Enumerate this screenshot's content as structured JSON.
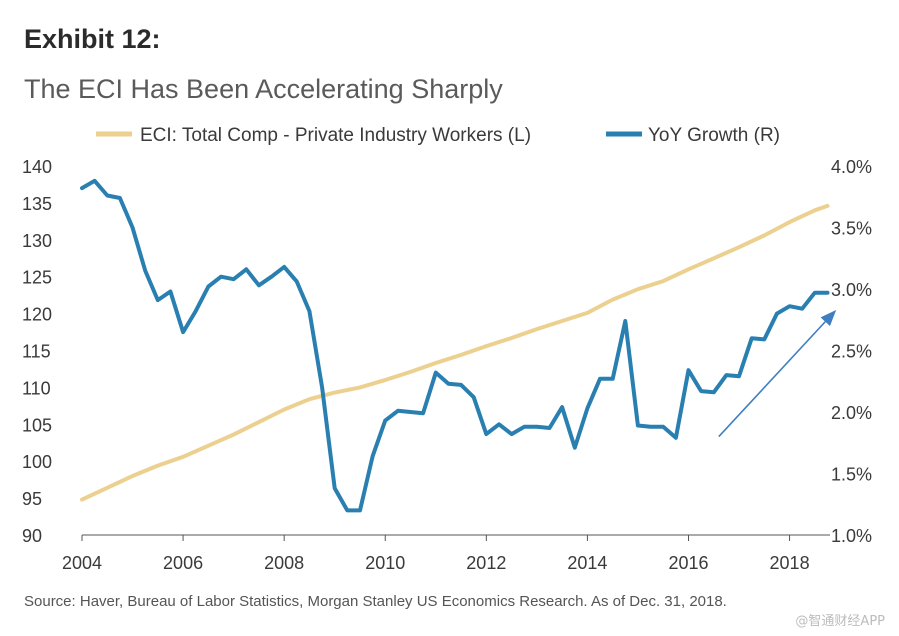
{
  "header": {
    "exhibit": "Exhibit 12:",
    "title": "The ECI Has Been Accelerating Sharply"
  },
  "footer": {
    "source": "Source: Haver, Bureau of Labor Statistics, Morgan Stanley US Economics Research. As of Dec. 31, 2018.",
    "watermark": "@智通财经APP"
  },
  "colors": {
    "eci": "#ecd08f",
    "yoy": "#2a7fb1",
    "arrow": "#3f7fc1"
  },
  "chart_data": {
    "type": "line",
    "title": "The ECI Has Been Accelerating Sharply",
    "legend_position": "top",
    "grid": false,
    "x_range": [
      2004,
      2018.8
    ],
    "x_ticks": [
      2004,
      2006,
      2008,
      2010,
      2012,
      2014,
      2016,
      2018
    ],
    "x_tick_labels": [
      "2004",
      "2006",
      "2008",
      "2010",
      "2012",
      "2014",
      "2016",
      "2018"
    ],
    "y_left": {
      "range": [
        90,
        140
      ],
      "ticks": [
        90,
        95,
        100,
        105,
        110,
        115,
        120,
        125,
        130,
        135,
        140
      ],
      "tick_labels": [
        "90",
        "95",
        "100",
        "105",
        "110",
        "115",
        "120",
        "125",
        "130",
        "135",
        "140"
      ]
    },
    "y_right": {
      "range": [
        1.0,
        4.0
      ],
      "ticks": [
        1.0,
        1.5,
        2.0,
        2.5,
        3.0,
        3.5,
        4.0
      ],
      "tick_labels": [
        "1.0%",
        "1.5%",
        "2.0%",
        "2.5%",
        "3.0%",
        "3.5%",
        "4.0%"
      ]
    },
    "series": [
      {
        "name": "ECI: Total Comp - Private Industry Workers (L)",
        "axis": "left",
        "x": [
          2004.0,
          2004.5,
          2005.0,
          2005.5,
          2006.0,
          2006.5,
          2007.0,
          2007.5,
          2008.0,
          2008.5,
          2009.0,
          2009.5,
          2010.0,
          2010.5,
          2011.0,
          2011.5,
          2012.0,
          2012.5,
          2013.0,
          2013.5,
          2014.0,
          2014.5,
          2015.0,
          2015.5,
          2016.0,
          2016.5,
          2017.0,
          2017.5,
          2018.0,
          2018.5,
          2018.75
        ],
        "values": [
          94.8,
          96.4,
          98.0,
          99.4,
          100.6,
          102.1,
          103.6,
          105.3,
          107.0,
          108.4,
          109.3,
          110.0,
          111.0,
          112.1,
          113.3,
          114.4,
          115.6,
          116.7,
          117.9,
          119.0,
          120.1,
          121.9,
          123.3,
          124.4,
          126.0,
          127.5,
          129.0,
          130.6,
          132.4,
          134.0,
          134.6
        ]
      },
      {
        "name": "YoY Growth (R)",
        "axis": "right",
        "x": [
          2004.0,
          2004.25,
          2004.5,
          2004.75,
          2005.0,
          2005.25,
          2005.5,
          2005.75,
          2006.0,
          2006.25,
          2006.5,
          2006.75,
          2007.0,
          2007.25,
          2007.5,
          2007.75,
          2008.0,
          2008.25,
          2008.5,
          2008.75,
          2009.0,
          2009.25,
          2009.5,
          2009.75,
          2010.0,
          2010.25,
          2010.5,
          2010.75,
          2011.0,
          2011.25,
          2011.5,
          2011.75,
          2012.0,
          2012.25,
          2012.5,
          2012.75,
          2013.0,
          2013.25,
          2013.5,
          2013.75,
          2014.0,
          2014.25,
          2014.5,
          2014.75,
          2015.0,
          2015.25,
          2015.5,
          2015.75,
          2016.0,
          2016.25,
          2016.5,
          2016.75,
          2017.0,
          2017.25,
          2017.5,
          2017.75,
          2018.0,
          2018.25,
          2018.5,
          2018.75
        ],
        "values": [
          3.82,
          3.88,
          3.76,
          3.74,
          3.5,
          3.15,
          2.91,
          2.98,
          2.65,
          2.82,
          3.02,
          3.1,
          3.08,
          3.16,
          3.03,
          3.1,
          3.18,
          3.06,
          2.82,
          2.2,
          1.38,
          1.2,
          1.2,
          1.64,
          1.93,
          2.01,
          2.0,
          1.99,
          2.32,
          2.23,
          2.22,
          2.12,
          1.82,
          1.9,
          1.82,
          1.88,
          1.88,
          1.87,
          2.04,
          1.71,
          2.03,
          2.27,
          2.27,
          2.74,
          1.89,
          1.88,
          1.88,
          1.79,
          2.34,
          2.17,
          2.16,
          2.3,
          2.29,
          2.6,
          2.59,
          2.8,
          2.86,
          2.84,
          2.97,
          2.97
        ]
      }
    ],
    "annotations": [
      {
        "type": "arrow",
        "from": [
          2016.6,
          1.8
        ],
        "to": [
          2018.9,
          2.82
        ],
        "axis": "right"
      }
    ]
  }
}
